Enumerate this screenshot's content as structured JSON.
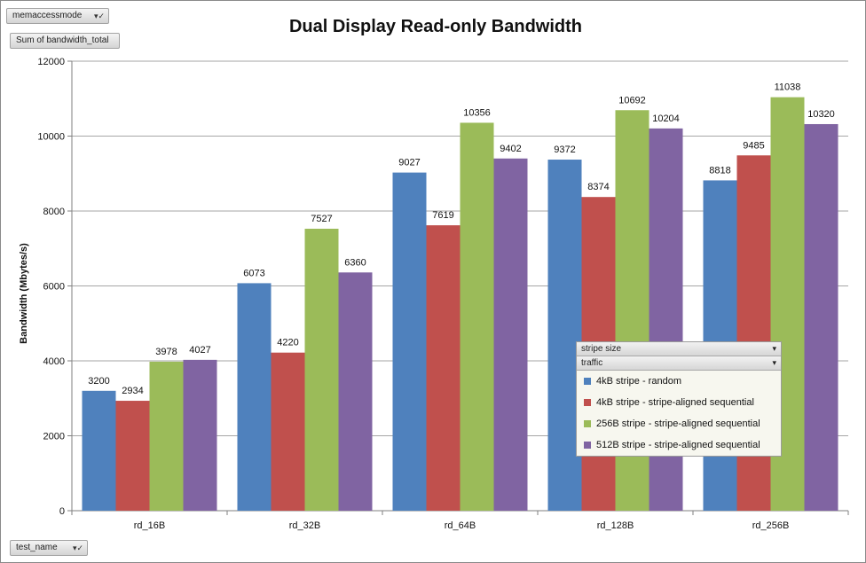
{
  "filters": {
    "memaccessmode": "memaccessmode",
    "sum_field": "Sum of bandwidth_total",
    "test_name": "test_name",
    "stripe_size": "stripe size",
    "traffic": "traffic"
  },
  "icons": {
    "filter_dropdown": "filter-dropdown-icon",
    "dropdown": "chevron-down-icon"
  },
  "chart_data": {
    "type": "bar",
    "title": "Dual Display Read-only Bandwidth",
    "xlabel": "",
    "ylabel": "Bandwidth (Mbytes/s)",
    "ylim": [
      0,
      12000
    ],
    "yticks": [
      "0",
      "2000",
      "4000",
      "6000",
      "8000",
      "10000",
      "12000"
    ],
    "grid": true,
    "legend_position": "bottom-right",
    "categories": [
      "rd_16B",
      "rd_32B",
      "rd_64B",
      "rd_128B",
      "rd_256B"
    ],
    "series": [
      {
        "name": "4kB stripe - random",
        "color": "#4f81bd",
        "values": [
          3200,
          6073,
          9027,
          9372,
          8818
        ]
      },
      {
        "name": "4kB stripe - stripe-aligned sequential",
        "color": "#c0504d",
        "values": [
          2934,
          4220,
          7619,
          8374,
          9485
        ]
      },
      {
        "name": "256B stripe - stripe-aligned sequential",
        "color": "#9bbb59",
        "values": [
          3978,
          7527,
          10356,
          10692,
          11038
        ]
      },
      {
        "name": "512B stripe - stripe-aligned sequential",
        "color": "#8064a2",
        "values": [
          4027,
          6360,
          9402,
          10204,
          10320
        ]
      }
    ]
  }
}
